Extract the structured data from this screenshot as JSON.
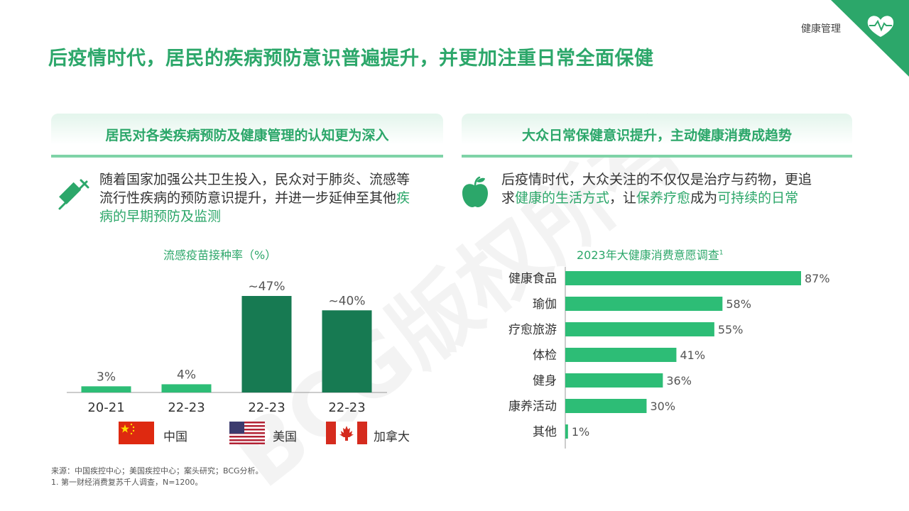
{
  "header": {
    "tag": "健康管理",
    "title": "后疫情时代，居民的疾病预防意识普遍提升，并更加注重日常全面保健",
    "watermark": "BCG版权所有"
  },
  "left_panel": {
    "heading": "居民对各类疾病预防及健康管理的认知更为深入",
    "desc_part1": "随着国家加强公共卫生投入，民众对于肺炎、流感等流行性疾病的预防意识提升，并进一步延伸至其他",
    "desc_highlight": "疾病的早期预防及监测",
    "icon": "syringe-icon"
  },
  "right_panel": {
    "heading": "大众日常保健意识提升，主动健康消费成趋势",
    "desc_part1": "后疫情时代，大众关注的不仅仅是治疗与药物，更追求",
    "desc_hl1": "健康的生活方式",
    "desc_part2": "，让",
    "desc_hl2": "保养疗愈",
    "desc_part3": "成为",
    "desc_hl3": "可持续的日常",
    "icon": "apple-icon"
  },
  "flags": [
    {
      "label": "中国",
      "icon": "china-flag-icon"
    },
    {
      "label": "美国",
      "icon": "usa-flag-icon"
    },
    {
      "label": "加拿大",
      "icon": "canada-flag-icon"
    }
  ],
  "footer": {
    "source": "来源：中国疾控中心；美国疾控中心；案头研究；BCG分析。",
    "note": "1. 第一财经消费复苏千人调查，N=1200。"
  },
  "colors": {
    "accent": "#2ca76a",
    "light_bar": "#2dbd76",
    "dark_bar": "#177a52",
    "header_line": "#7fd3a7"
  },
  "chart_data": [
    {
      "type": "bar",
      "title": "流感疫苗接种率（%）",
      "categories": [
        "20-21",
        "22-23",
        "22-23",
        "22-23"
      ],
      "values": [
        3,
        4,
        47,
        40
      ],
      "value_labels": [
        "3%",
        "4%",
        "~47%",
        "~40%"
      ],
      "bar_colors": [
        "#2dbd76",
        "#2dbd76",
        "#177a52",
        "#177a52"
      ],
      "ylim": [
        0,
        47
      ]
    },
    {
      "type": "bar",
      "orientation": "horizontal",
      "title": "2023年大健康消费意愿调查",
      "title_superscript": "1",
      "categories": [
        "健康食品",
        "瑜伽",
        "疗愈旅游",
        "体检",
        "健身",
        "康养活动",
        "其他"
      ],
      "values": [
        87,
        58,
        55,
        41,
        36,
        30,
        1
      ],
      "value_labels": [
        "87%",
        "58%",
        "55%",
        "41%",
        "36%",
        "30%",
        "1%"
      ],
      "xlim": [
        0,
        87
      ]
    }
  ]
}
